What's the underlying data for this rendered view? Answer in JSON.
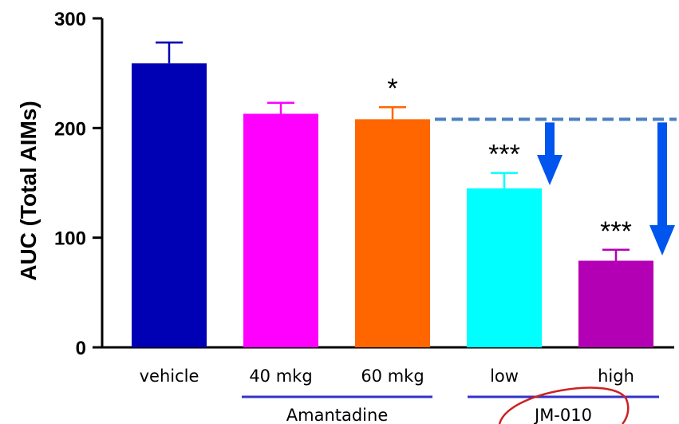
{
  "chart_data": {
    "type": "bar",
    "title": "",
    "xlabel": "",
    "ylabel": "AUC (Total AIMs)",
    "ylim": [
      0,
      300
    ],
    "yticks": [
      0,
      100,
      200,
      300
    ],
    "categories": [
      "vehicle",
      "40 mkg",
      "60 mkg",
      "low",
      "high"
    ],
    "values": [
      259,
      213,
      208,
      145,
      79
    ],
    "errors": [
      19,
      10,
      11,
      14,
      10
    ],
    "colors": [
      "#0000b4",
      "#ff00ff",
      "#ff6600",
      "#00ffff",
      "#b400b4"
    ],
    "significance": [
      "",
      "",
      "*",
      "***",
      "***"
    ],
    "groups": [
      {
        "label": "Amantadine",
        "members": [
          "40 mkg",
          "60 mkg"
        ]
      },
      {
        "label": "JM-010",
        "members": [
          "low",
          "high"
        ]
      }
    ],
    "reference_line": {
      "value": 208,
      "color": "#4a7fc1"
    },
    "arrow_color": "#0055ee",
    "group_line_color": "#3333cc",
    "highlight_ellipse_color": "#cc2222",
    "grid": false
  }
}
